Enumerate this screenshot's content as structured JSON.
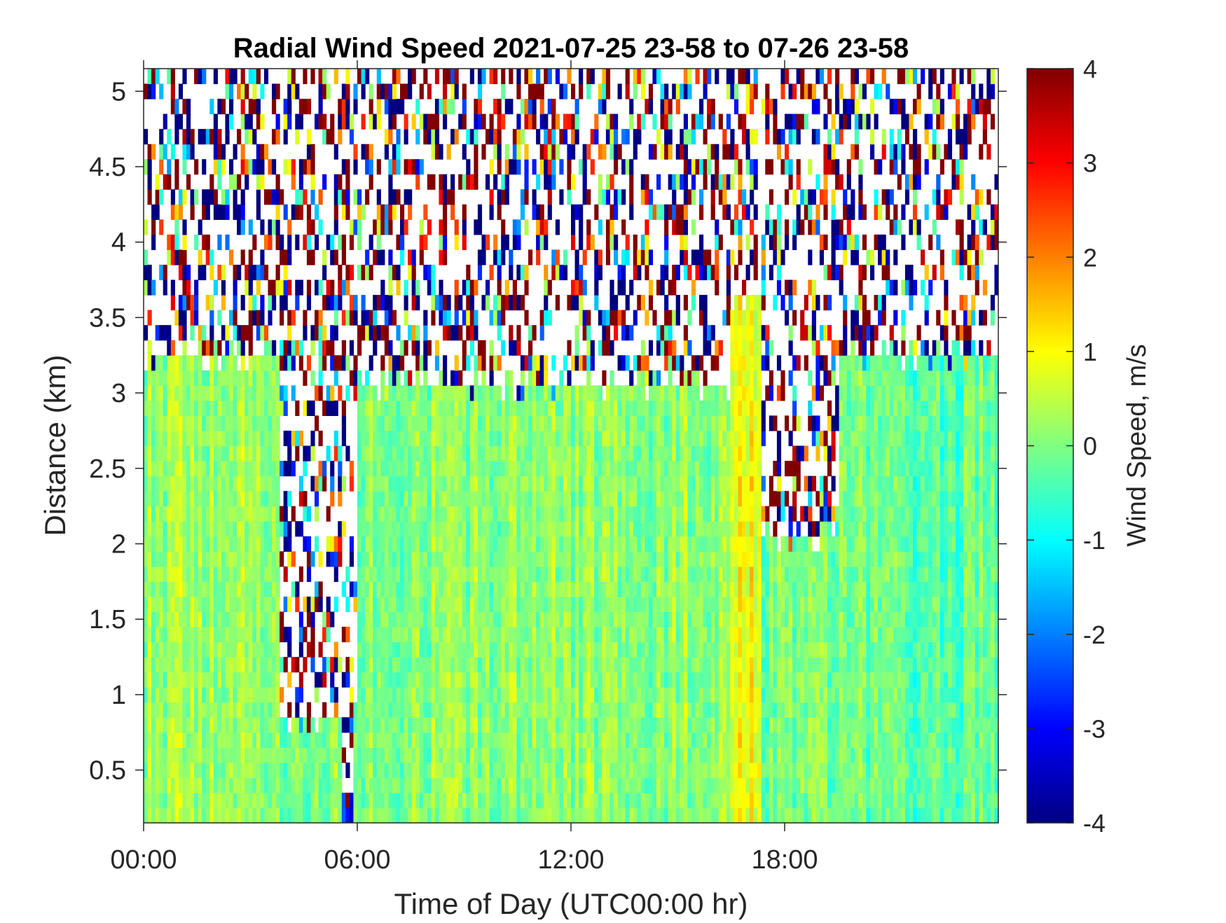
{
  "chart_data": {
    "type": "heatmap",
    "title": "Radial Wind Speed 2021-07-25 23-58 to 07-26 23-58",
    "xlabel": "Time of Day (UTC00:00 hr)",
    "ylabel": "Distance (km)",
    "x_ticks": [
      {
        "value": 0,
        "label": "00:00"
      },
      {
        "value": 6,
        "label": "06:00"
      },
      {
        "value": 12,
        "label": "12:00"
      },
      {
        "value": 18,
        "label": "18:00"
      }
    ],
    "y_ticks": [
      {
        "value": 0.5,
        "label": "0.5"
      },
      {
        "value": 1,
        "label": "1"
      },
      {
        "value": 1.5,
        "label": "1.5"
      },
      {
        "value": 2,
        "label": "2"
      },
      {
        "value": 2.5,
        "label": "2.5"
      },
      {
        "value": 3,
        "label": "3"
      },
      {
        "value": 3.5,
        "label": "3.5"
      },
      {
        "value": 4,
        "label": "4"
      },
      {
        "value": 4.5,
        "label": "4.5"
      },
      {
        "value": 5,
        "label": "5"
      }
    ],
    "xlim": [
      0,
      24
    ],
    "ylim": [
      0.15,
      5.15
    ],
    "colorbar": {
      "label": "Wind Speed, m/s",
      "colormap": "jet",
      "clim": [
        -4,
        4
      ],
      "ticks": [
        {
          "value": 4,
          "label": "4"
        },
        {
          "value": 3,
          "label": "3"
        },
        {
          "value": 2,
          "label": "2"
        },
        {
          "value": 1,
          "label": "1"
        },
        {
          "value": 0,
          "label": "0"
        },
        {
          "value": -1,
          "label": "-1"
        },
        {
          "value": -2,
          "label": "-2"
        },
        {
          "value": -3,
          "label": "-3"
        },
        {
          "value": -4,
          "label": "-4"
        }
      ]
    },
    "regions": [
      {
        "time_range": [
          0,
          3.8
        ],
        "distance_max": 3.25,
        "typical_speed": 0.3
      },
      {
        "time_range": [
          3.8,
          6.0
        ],
        "distance_max": 0.8,
        "typical_speed": 0.0
      },
      {
        "time_range": [
          5.6,
          5.9
        ],
        "distance_max": 0.3,
        "typical_speed": -3.0
      },
      {
        "time_range": [
          6.0,
          16.5
        ],
        "distance_max": 3.05,
        "typical_speed": 0.1
      },
      {
        "time_range": [
          16.5,
          17.3
        ],
        "distance_max": 3.6,
        "typical_speed": 1.0
      },
      {
        "time_range": [
          17.3,
          24
        ],
        "distance_max": 2.05,
        "typical_speed": 0.0
      },
      {
        "time_range": [
          19.5,
          24
        ],
        "distance_max": 3.25,
        "typical_speed": -0.2
      }
    ],
    "noise_range": [
      -4,
      4
    ],
    "grid": false
  }
}
